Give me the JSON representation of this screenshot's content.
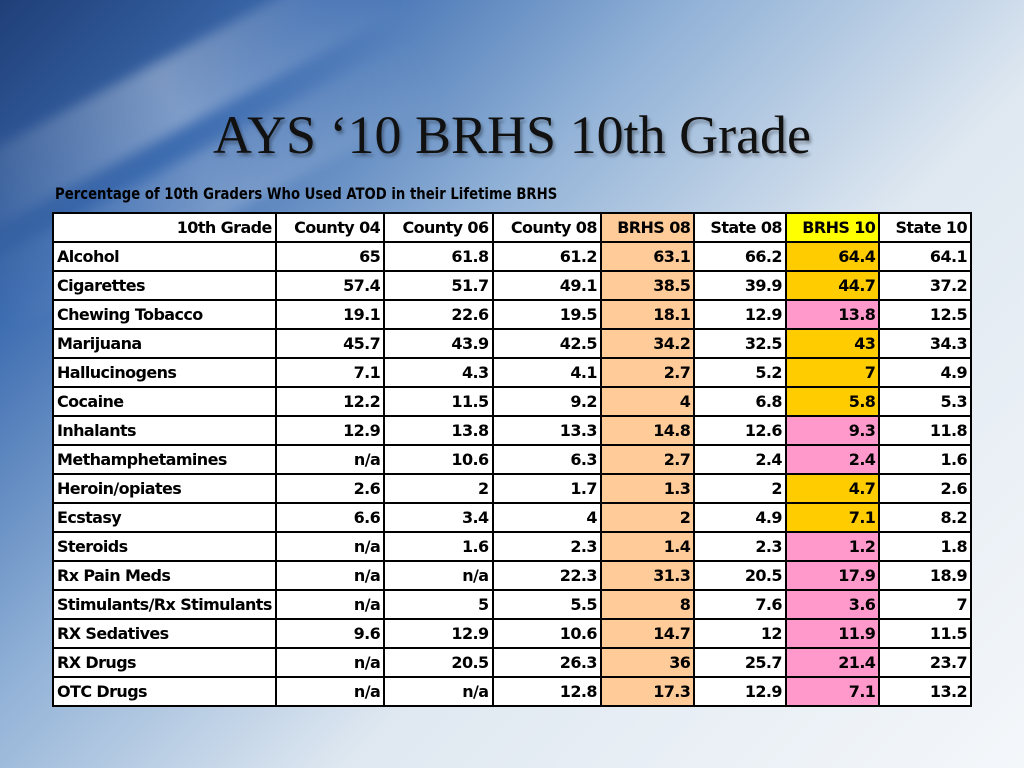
{
  "title": "AYS ‘10 BRHS 10th Grade",
  "chart_data": {
    "type": "table",
    "title": "Percentage of 10th Graders Who Used ATOD in their Lifetime BRHS",
    "columns": [
      "10th Grade",
      "County 04",
      "County 06",
      "County 08",
      "BRHS 08",
      "State 08",
      "BRHS 10",
      "State 10"
    ],
    "rows": [
      {
        "label": "Alcohol",
        "values": [
          "65",
          "61.8",
          "61.2",
          "63.1",
          "66.2",
          "64.4",
          "64.1"
        ],
        "brhs10_highlight": "gold"
      },
      {
        "label": "Cigarettes",
        "values": [
          "57.4",
          "51.7",
          "49.1",
          "38.5",
          "39.9",
          "44.7",
          "37.2"
        ],
        "brhs10_highlight": "gold"
      },
      {
        "label": "Chewing Tobacco",
        "values": [
          "19.1",
          "22.6",
          "19.5",
          "18.1",
          "12.9",
          "13.8",
          "12.5"
        ],
        "brhs10_highlight": "pink"
      },
      {
        "label": "Marijuana",
        "values": [
          "45.7",
          "43.9",
          "42.5",
          "34.2",
          "32.5",
          "43",
          "34.3"
        ],
        "brhs10_highlight": "gold"
      },
      {
        "label": "Hallucinogens",
        "values": [
          "7.1",
          "4.3",
          "4.1",
          "2.7",
          "5.2",
          "7",
          "4.9"
        ],
        "brhs10_highlight": "gold"
      },
      {
        "label": "Cocaine",
        "values": [
          "12.2",
          "11.5",
          "9.2",
          "4",
          "6.8",
          "5.8",
          "5.3"
        ],
        "brhs10_highlight": "gold"
      },
      {
        "label": "Inhalants",
        "values": [
          "12.9",
          "13.8",
          "13.3",
          "14.8",
          "12.6",
          "9.3",
          "11.8"
        ],
        "brhs10_highlight": "pink"
      },
      {
        "label": "Methamphetamines",
        "values": [
          "n/a",
          "10.6",
          "6.3",
          "2.7",
          "2.4",
          "2.4",
          "1.6"
        ],
        "brhs10_highlight": "pink"
      },
      {
        "label": "Heroin/opiates",
        "values": [
          "2.6",
          "2",
          "1.7",
          "1.3",
          "2",
          "4.7",
          "2.6"
        ],
        "brhs10_highlight": "gold"
      },
      {
        "label": "Ecstasy",
        "values": [
          "6.6",
          "3.4",
          "4",
          "2",
          "4.9",
          "7.1",
          "8.2"
        ],
        "brhs10_highlight": "gold"
      },
      {
        "label": "Steroids",
        "values": [
          "n/a",
          "1.6",
          "2.3",
          "1.4",
          "2.3",
          "1.2",
          "1.8"
        ],
        "brhs10_highlight": "pink"
      },
      {
        "label": "Rx Pain Meds",
        "values": [
          "n/a",
          "n/a",
          "22.3",
          "31.3",
          "20.5",
          "17.9",
          "18.9"
        ],
        "brhs10_highlight": "pink"
      },
      {
        "label": "Stimulants/Rx Stimulants",
        "values": [
          "n/a",
          "5",
          "5.5",
          "8",
          "7.6",
          "3.6",
          "7"
        ],
        "brhs10_highlight": "pink"
      },
      {
        "label": "RX Sedatives",
        "values": [
          "9.6",
          "12.9",
          "10.6",
          "14.7",
          "12",
          "11.9",
          "11.5"
        ],
        "brhs10_highlight": "pink"
      },
      {
        "label": "RX Drugs",
        "values": [
          "n/a",
          "20.5",
          "26.3",
          "36",
          "25.7",
          "21.4",
          "23.7"
        ],
        "brhs10_highlight": "pink"
      },
      {
        "label": "OTC Drugs",
        "values": [
          "n/a",
          "n/a",
          "12.8",
          "17.3",
          "12.9",
          "7.1",
          "13.2"
        ],
        "brhs10_highlight": "pink"
      }
    ]
  },
  "colors": {
    "brhs08": "#ffcc99",
    "brhs10_header": "#ffff00",
    "gold": "#ffcc00",
    "pink": "#ff99cc"
  }
}
